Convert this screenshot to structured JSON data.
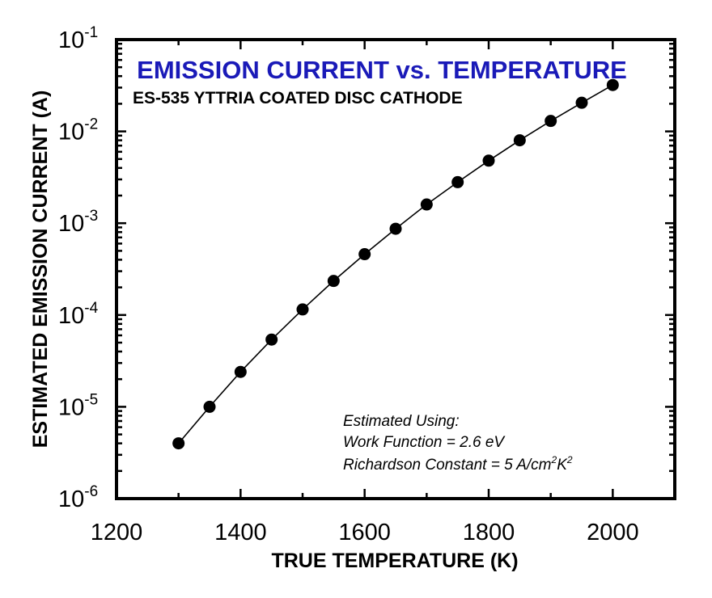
{
  "chart_data": {
    "type": "scatter",
    "title": "EMISSION CURRENT vs. TEMPERATURE",
    "subtitle": "ES-535 YTTRIA COATED DISC CATHODE",
    "xlabel": "TRUE TEMPERATURE (K)",
    "ylabel": "ESTIMATED EMISSION CURRENT (A)",
    "xlim": [
      1200,
      2100
    ],
    "ylim": [
      1e-06,
      0.1
    ],
    "yscale": "log",
    "x_ticks": [
      "1200",
      "1400",
      "1600",
      "1800",
      "2000"
    ],
    "y_ticks": [
      {
        "base": "10",
        "exp": "-6",
        "value": 1e-06
      },
      {
        "base": "10",
        "exp": "-5",
        "value": 1e-05
      },
      {
        "base": "10",
        "exp": "-4",
        "value": 0.0001
      },
      {
        "base": "10",
        "exp": "-3",
        "value": 0.001
      },
      {
        "base": "10",
        "exp": "-2",
        "value": 0.01
      },
      {
        "base": "10",
        "exp": "-1",
        "value": 0.1
      }
    ],
    "grid": false,
    "series": [
      {
        "marker": "filled-circle",
        "line": true,
        "color": "#000000",
        "x": [
          1300,
          1350,
          1400,
          1450,
          1500,
          1550,
          1600,
          1650,
          1700,
          1750,
          1800,
          1850,
          1900,
          1950,
          2000
        ],
        "y": [
          4e-06,
          1e-05,
          2.4e-05,
          5.4e-05,
          0.000115,
          0.000235,
          0.00046,
          0.00087,
          0.0016,
          0.0028,
          0.0048,
          0.008,
          0.013,
          0.0205,
          0.032
        ]
      }
    ],
    "annotation": {
      "line1": "Estimated Using:",
      "line2": "Work Function = 2.6 eV",
      "line3_prefix": "Richardson Constant = 5 A/cm",
      "line3_sup1": "2",
      "line3_mid": "K",
      "line3_sup2": "2"
    },
    "colors": {
      "title": "#1a1ab8",
      "text": "#000000",
      "axes": "#000000",
      "background": "#ffffff"
    }
  }
}
